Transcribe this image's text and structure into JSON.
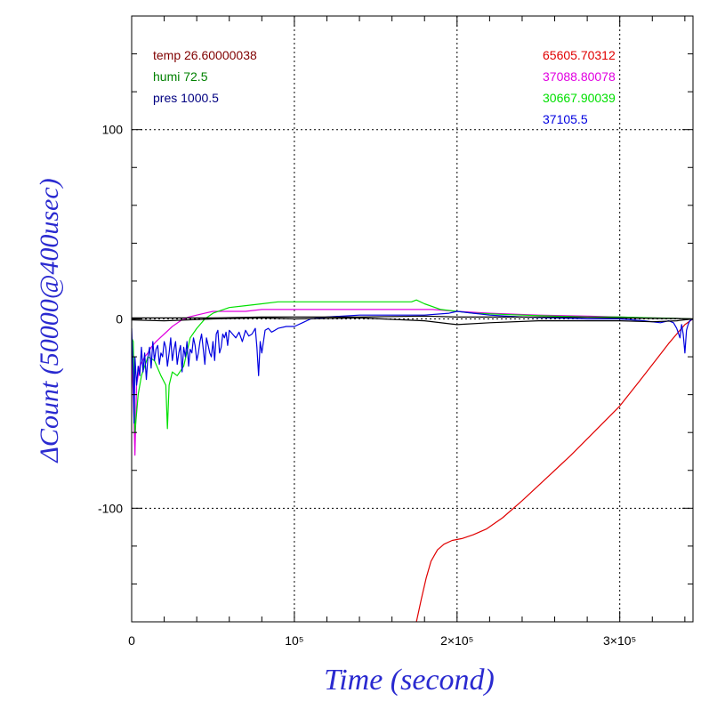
{
  "chart_data": {
    "type": "line",
    "xlabel": "Time (second)",
    "ylabel": "ΔCount (50000@400usec)",
    "xlim": [
      0,
      345000
    ],
    "ylim": [
      -160,
      160
    ],
    "x_ticks": [
      {
        "value": 0,
        "label": "0"
      },
      {
        "value": 100000,
        "label": "10⁵"
      },
      {
        "value": 200000,
        "label": "2×10⁵"
      },
      {
        "value": 300000,
        "label": "3×10⁵"
      }
    ],
    "y_ticks": [
      {
        "value": 100,
        "label": "100"
      },
      {
        "value": 0,
        "label": "0"
      },
      {
        "value": -100,
        "label": "-100"
      }
    ],
    "grid": true,
    "legend_left": [
      {
        "text": "temp 26.60000038",
        "color": "#800000"
      },
      {
        "text": "humi 72.5",
        "color": "#008000"
      },
      {
        "text": "pres 1000.5",
        "color": "#000080"
      }
    ],
    "legend_right": [
      {
        "text": "65605.70312",
        "color": "#e00000"
      },
      {
        "text": "37088.80078",
        "color": "#e000e0"
      },
      {
        "text": "30667.90039",
        "color": "#00e000"
      },
      {
        "text": "37105.5",
        "color": "#0000e0"
      }
    ],
    "series": [
      {
        "color": "#e00000",
        "x": [
          175000,
          178000,
          181000,
          184000,
          188000,
          192000,
          197000,
          203000,
          210000,
          218000,
          228000,
          240000,
          255000,
          270000,
          285000,
          300000,
          312000,
          322000,
          330000,
          336000,
          340000,
          345000
        ],
        "y": [
          -160,
          -148,
          -137,
          -128,
          -122,
          -119,
          -117,
          -116,
          -114,
          -111,
          -105,
          -96,
          -84,
          -72,
          -59,
          -46,
          -33,
          -22,
          -13,
          -7,
          -3,
          0
        ]
      },
      {
        "color": "#e000e0",
        "x": [
          0,
          1000,
          2000,
          3000,
          5000,
          8000,
          10000,
          12000,
          15000,
          20000,
          25000,
          30000,
          35000,
          40000,
          45000,
          50000,
          60000,
          70000,
          80000,
          90000,
          100000,
          120000,
          140000,
          160000,
          175000,
          185000,
          200000,
          220000,
          250000,
          280000,
          300000,
          320000,
          335000,
          345000
        ],
        "y": [
          -20,
          -40,
          -72,
          -35,
          -25,
          -20,
          -18,
          -15,
          -12,
          -8,
          -4,
          -1,
          1,
          2,
          3,
          4,
          4,
          4,
          5,
          5,
          5,
          5,
          5,
          5,
          5,
          5,
          4,
          3,
          2,
          1.5,
          1,
          0.5,
          0.3,
          0
        ]
      },
      {
        "color": "#00e000",
        "x": [
          0,
          1000,
          2000,
          4000,
          6000,
          8000,
          10000,
          14000,
          18000,
          21000,
          22000,
          23000,
          25000,
          28000,
          32000,
          36000,
          40000,
          45000,
          50000,
          60000,
          70000,
          80000,
          90000,
          100000,
          120000,
          140000,
          160000,
          172000,
          175000,
          180000,
          190000,
          200000,
          210000,
          225000,
          240000,
          260000,
          280000,
          300000,
          320000,
          335000,
          345000
        ],
        "y": [
          -10,
          -12,
          -60,
          -40,
          -30,
          -25,
          -20,
          -22,
          -30,
          -35,
          -58,
          -35,
          -28,
          -30,
          -25,
          -10,
          -5,
          0,
          3,
          6,
          7,
          8,
          9,
          9,
          9,
          9,
          9,
          9,
          10,
          8,
          5,
          4,
          3,
          2.5,
          2,
          1.5,
          1,
          1,
          0.5,
          0.3,
          0
        ]
      },
      {
        "color": "#0000e0",
        "x": [
          0,
          1000,
          1500,
          2000,
          3000,
          4000,
          5000,
          6000,
          7000,
          8000,
          9000,
          10000,
          11000,
          12000,
          13000,
          14000,
          15000,
          16000,
          17000,
          18000,
          19000,
          20000,
          21000,
          22000,
          23000,
          24000,
          25000,
          26000,
          27000,
          28000,
          29000,
          30000,
          31000,
          32000,
          33000,
          34000,
          35000,
          36000,
          37000,
          38000,
          39000,
          40000,
          41000,
          42000,
          43000,
          44000,
          45000,
          46000,
          47000,
          48000,
          49000,
          50000,
          51000,
          52000,
          53000,
          54000,
          55000,
          56000,
          57000,
          58000,
          59000,
          60000,
          62000,
          64000,
          66000,
          68000,
          70000,
          72000,
          74000,
          76000,
          77000,
          78000,
          79000,
          80000,
          82000,
          84000,
          86000,
          88000,
          90000,
          95000,
          100000,
          105000,
          110000,
          120000,
          140000,
          160000,
          180000,
          195000,
          200000,
          220000,
          240000,
          260000,
          280000,
          300000,
          315000,
          325000,
          330000,
          333000,
          335000,
          337000,
          338000,
          339000,
          340000,
          341000,
          342000,
          343000,
          345000
        ],
        "y": [
          -5,
          -30,
          -55,
          -20,
          -35,
          -25,
          -30,
          -15,
          -28,
          -18,
          -32,
          -20,
          -15,
          -26,
          -12,
          -22,
          -16,
          -14,
          -24,
          -18,
          -20,
          -12,
          -15,
          -25,
          -18,
          -10,
          -22,
          -16,
          -12,
          -24,
          -18,
          -14,
          -28,
          -15,
          -20,
          -12,
          -25,
          -16,
          -18,
          -10,
          -14,
          -22,
          -18,
          -12,
          -8,
          -16,
          -24,
          -10,
          -14,
          -18,
          -20,
          -12,
          -22,
          -8,
          -6,
          -18,
          -15,
          -8,
          -10,
          -7,
          -14,
          -6,
          -8,
          -10,
          -7,
          -12,
          -6,
          -9,
          -8,
          -5,
          -15,
          -30,
          -12,
          -18,
          -6,
          -5,
          -7,
          -6,
          -5,
          -4,
          -4,
          -2,
          0,
          1,
          2,
          2,
          2,
          3,
          4,
          2,
          1,
          0.5,
          0,
          0,
          -1,
          -2,
          -1,
          -2,
          -5,
          -10,
          -3,
          -8,
          -18,
          -6,
          -3,
          -1,
          0
        ]
      },
      {
        "color": "#000000",
        "x": [
          0,
          20000,
          50000,
          80000,
          100000,
          140000,
          180000,
          200000,
          220000,
          250000,
          280000,
          300000,
          320000,
          335000,
          345000
        ],
        "y": [
          -0.5,
          -1,
          0,
          0.5,
          0,
          0.5,
          -1,
          -3,
          -2,
          -1,
          -1,
          -1,
          -1.5,
          -1,
          0
        ]
      },
      {
        "color": "#000000",
        "x": [
          0,
          20000,
          50000,
          80000,
          100000,
          140000,
          180000,
          200000,
          220000,
          250000,
          280000,
          300000,
          320000,
          335000,
          345000
        ],
        "y": [
          0.5,
          0.5,
          0.5,
          1,
          1,
          1,
          1.5,
          1,
          1,
          1,
          0.8,
          0.5,
          0.3,
          0.2,
          0
        ]
      }
    ]
  }
}
